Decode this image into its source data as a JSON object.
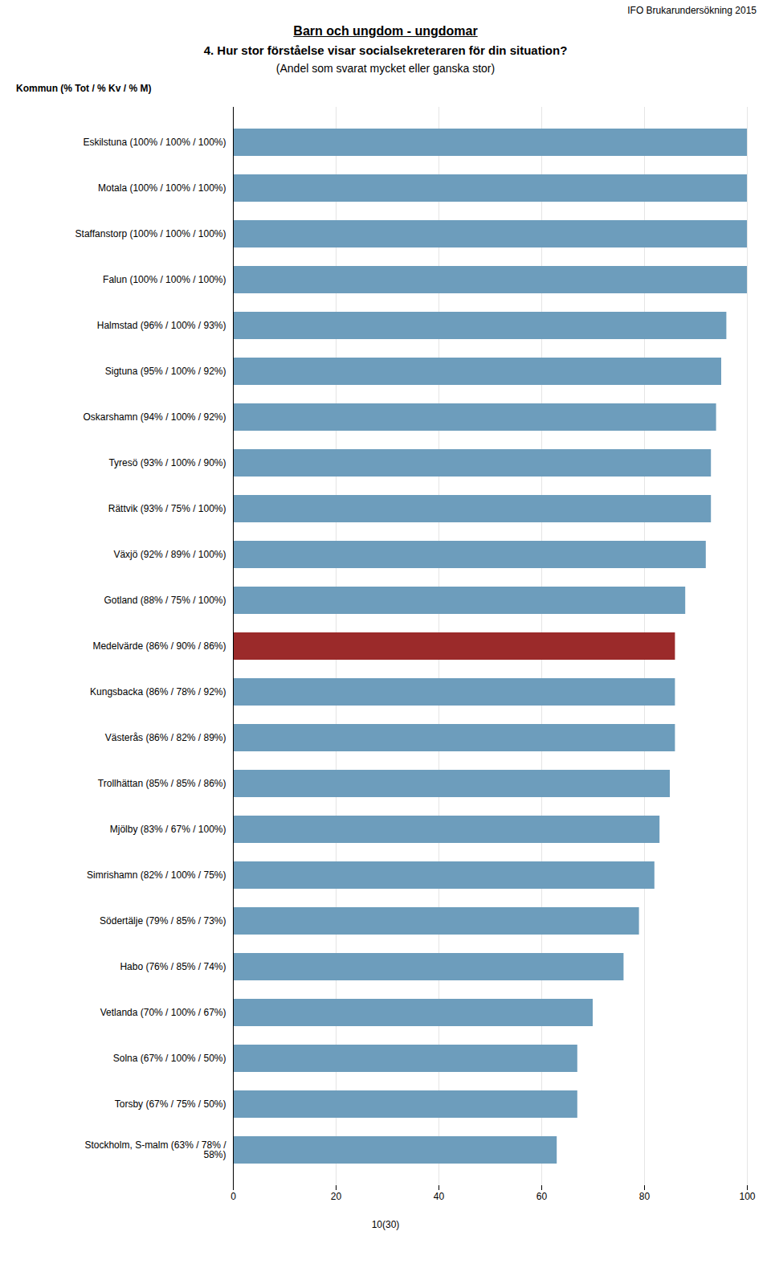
{
  "chart_data": {
    "type": "bar",
    "orientation": "horizontal",
    "title": "Barn och ungdom - ungdomar",
    "subtitle": [
      "4. Hur stor förståelse visar socialsekreteraren för din situation?",
      "(Andel som svarat mycket eller ganska stor)"
    ],
    "annotations": [
      "IFO Brukarundersökning 2015",
      "10(30)"
    ],
    "ylabel": "Kommun (% Tot / % Kv / % M)",
    "categories": [
      "Eskilstuna (100% / 100% / 100%)",
      "Motala (100% / 100% / 100%)",
      "Staffanstorp (100% / 100% / 100%)",
      "Falun (100% / 100% / 100%)",
      "Halmstad (96% / 100% / 93%)",
      "Sigtuna (95% / 100% / 92%)",
      "Oskarshamn (94% / 100% / 92%)",
      "Tyresö (93% / 100% / 90%)",
      "Rättvik (93% / 75% / 100%)",
      "Växjö (92% / 89% / 100%)",
      "Gotland (88% / 75% / 100%)",
      "Medelvärde (86% / 90% / 86%)",
      "Kungsbacka (86% / 78% / 92%)",
      "Västerås (86% / 82% / 89%)",
      "Trollhättan (85% / 85% / 86%)",
      "Mjölby (83% / 67% / 100%)",
      "Simrishamn (82% / 100% / 75%)",
      "Södertälje (79% / 85% / 73%)",
      "Habo (76% / 85% / 74%)",
      "Vetlanda (70% / 100% / 67%)",
      "Solna (67% / 100% / 50%)",
      "Torsby (67% / 75% / 50%)",
      "Stockholm, S-malm (63% / 78% /\n58%)"
    ],
    "values": [
      100,
      100,
      100,
      100,
      96,
      95,
      94,
      93,
      93,
      92,
      88,
      86,
      86,
      86,
      85,
      83,
      82,
      79,
      76,
      70,
      67,
      67,
      63
    ],
    "colors": [
      "#6d9dbc",
      "#6d9dbc",
      "#6d9dbc",
      "#6d9dbc",
      "#6d9dbc",
      "#6d9dbc",
      "#6d9dbc",
      "#6d9dbc",
      "#6d9dbc",
      "#6d9dbc",
      "#6d9dbc",
      "#9b2a2a",
      "#6d9dbc",
      "#6d9dbc",
      "#6d9dbc",
      "#6d9dbc",
      "#6d9dbc",
      "#6d9dbc",
      "#6d9dbc",
      "#6d9dbc",
      "#6d9dbc",
      "#6d9dbc",
      "#6d9dbc"
    ],
    "xlim": [
      0,
      100
    ],
    "xticks": [
      0,
      20,
      40,
      60,
      80,
      100
    ],
    "grid": true
  }
}
